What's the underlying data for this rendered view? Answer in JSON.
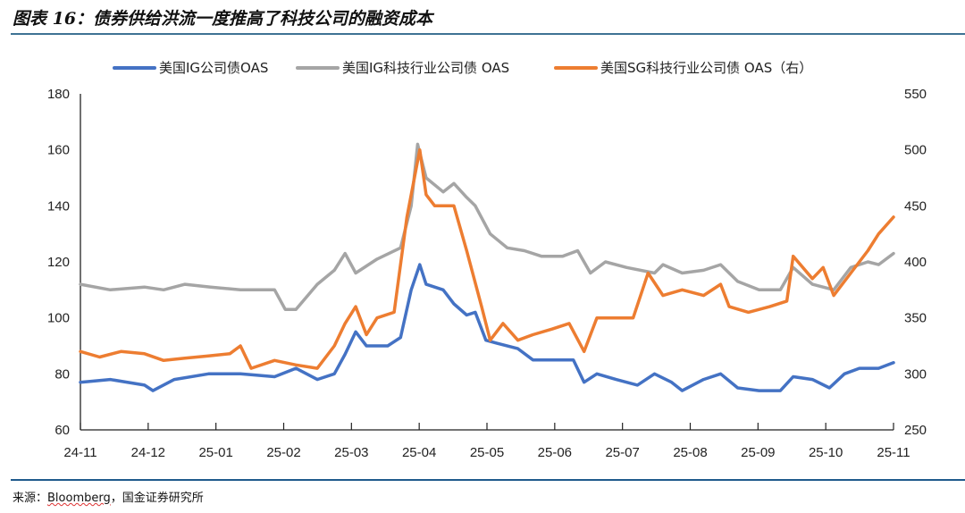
{
  "title": "图表 16：债券供给洪流一度推高了科技公司的融资成本",
  "source": {
    "prefix": "来源：",
    "name": "Bloomberg",
    "suffix": "，国金证券研究所"
  },
  "chart_data": {
    "type": "line",
    "title": "图表 16：债券供给洪流一度推高了科技公司的融资成本",
    "x_tick_labels": [
      "24-11",
      "24-12",
      "25-01",
      "25-02",
      "25-03",
      "25-04",
      "25-05",
      "25-06",
      "25-07",
      "25-08",
      "25-09",
      "25-10",
      "25-11"
    ],
    "xlim": [
      "2024-11-01",
      "2025-11-17"
    ],
    "y_left": {
      "lim": [
        60,
        180
      ],
      "ticks": [
        60,
        80,
        100,
        120,
        140,
        160,
        180
      ]
    },
    "y_right": {
      "lim": [
        250,
        550
      ],
      "ticks": [
        250,
        300,
        350,
        400,
        450,
        500,
        550
      ]
    },
    "grid": false,
    "legend_position": "top",
    "series": [
      {
        "name": "美国IG公司债OAS",
        "axis": "left",
        "color": "#4472c4",
        "points": [
          [
            "2024-11-01",
            77
          ],
          [
            "2024-11-15",
            78
          ],
          [
            "2024-12-01",
            76
          ],
          [
            "2024-12-05",
            74
          ],
          [
            "2024-12-15",
            78
          ],
          [
            "2024-12-31",
            80
          ],
          [
            "2025-01-15",
            80
          ],
          [
            "2025-01-31",
            79
          ],
          [
            "2025-02-10",
            82
          ],
          [
            "2025-02-20",
            78
          ],
          [
            "2025-02-28",
            80
          ],
          [
            "2025-03-05",
            87
          ],
          [
            "2025-03-10",
            95
          ],
          [
            "2025-03-15",
            90
          ],
          [
            "2025-03-25",
            90
          ],
          [
            "2025-03-31",
            93
          ],
          [
            "2025-04-05",
            110
          ],
          [
            "2025-04-09",
            119
          ],
          [
            "2025-04-12",
            112
          ],
          [
            "2025-04-20",
            110
          ],
          [
            "2025-04-25",
            105
          ],
          [
            "2025-05-01",
            101
          ],
          [
            "2025-05-05",
            102
          ],
          [
            "2025-05-10",
            92
          ],
          [
            "2025-05-15",
            91
          ],
          [
            "2025-05-25",
            89
          ],
          [
            "2025-06-01",
            85
          ],
          [
            "2025-06-10",
            85
          ],
          [
            "2025-06-20",
            85
          ],
          [
            "2025-06-25",
            77
          ],
          [
            "2025-07-01",
            80
          ],
          [
            "2025-07-10",
            78
          ],
          [
            "2025-07-20",
            76
          ],
          [
            "2025-07-28",
            80
          ],
          [
            "2025-08-05",
            77
          ],
          [
            "2025-08-10",
            74
          ],
          [
            "2025-08-20",
            78
          ],
          [
            "2025-08-28",
            80
          ],
          [
            "2025-09-05",
            75
          ],
          [
            "2025-09-15",
            74
          ],
          [
            "2025-09-25",
            74
          ],
          [
            "2025-10-01",
            79
          ],
          [
            "2025-10-10",
            78
          ],
          [
            "2025-10-18",
            75
          ],
          [
            "2025-10-25",
            80
          ],
          [
            "2025-11-01",
            82
          ],
          [
            "2025-11-10",
            82
          ],
          [
            "2025-11-17",
            84
          ]
        ]
      },
      {
        "name": "美国IG科技行业公司债 OAS",
        "axis": "left",
        "color": "#a5a5a5",
        "points": [
          [
            "2024-11-01",
            112
          ],
          [
            "2024-11-15",
            110
          ],
          [
            "2024-12-01",
            111
          ],
          [
            "2024-12-10",
            110
          ],
          [
            "2024-12-20",
            112
          ],
          [
            "2025-01-01",
            111
          ],
          [
            "2025-01-15",
            110
          ],
          [
            "2025-01-31",
            110
          ],
          [
            "2025-02-05",
            103
          ],
          [
            "2025-02-10",
            103
          ],
          [
            "2025-02-20",
            112
          ],
          [
            "2025-02-28",
            117
          ],
          [
            "2025-03-05",
            123
          ],
          [
            "2025-03-10",
            116
          ],
          [
            "2025-03-20",
            121
          ],
          [
            "2025-03-31",
            125
          ],
          [
            "2025-04-05",
            140
          ],
          [
            "2025-04-08",
            162
          ],
          [
            "2025-04-12",
            150
          ],
          [
            "2025-04-20",
            145
          ],
          [
            "2025-04-25",
            148
          ],
          [
            "2025-05-01",
            143
          ],
          [
            "2025-05-05",
            140
          ],
          [
            "2025-05-12",
            130
          ],
          [
            "2025-05-20",
            125
          ],
          [
            "2025-05-28",
            124
          ],
          [
            "2025-06-05",
            122
          ],
          [
            "2025-06-15",
            122
          ],
          [
            "2025-06-22",
            124
          ],
          [
            "2025-06-28",
            116
          ],
          [
            "2025-07-05",
            120
          ],
          [
            "2025-07-15",
            118
          ],
          [
            "2025-07-28",
            116
          ],
          [
            "2025-08-01",
            119
          ],
          [
            "2025-08-10",
            116
          ],
          [
            "2025-08-20",
            117
          ],
          [
            "2025-08-28",
            119
          ],
          [
            "2025-09-05",
            113
          ],
          [
            "2025-09-15",
            110
          ],
          [
            "2025-09-25",
            110
          ],
          [
            "2025-10-01",
            118
          ],
          [
            "2025-10-10",
            112
          ],
          [
            "2025-10-20",
            110
          ],
          [
            "2025-10-28",
            118
          ],
          [
            "2025-11-05",
            120
          ],
          [
            "2025-11-10",
            119
          ],
          [
            "2025-11-17",
            123
          ]
        ]
      },
      {
        "name": "美国SG科技行业公司债 OAS（右）",
        "axis": "right",
        "color": "#ed7d31",
        "points": [
          [
            "2024-11-01",
            320
          ],
          [
            "2024-11-10",
            315
          ],
          [
            "2024-11-20",
            320
          ],
          [
            "2024-12-01",
            318
          ],
          [
            "2024-12-10",
            312
          ],
          [
            "2024-12-20",
            314
          ],
          [
            "2024-12-31",
            316
          ],
          [
            "2025-01-10",
            318
          ],
          [
            "2025-01-15",
            325
          ],
          [
            "2025-01-20",
            305
          ],
          [
            "2025-01-31",
            312
          ],
          [
            "2025-02-10",
            308
          ],
          [
            "2025-02-20",
            305
          ],
          [
            "2025-02-28",
            325
          ],
          [
            "2025-03-05",
            345
          ],
          [
            "2025-03-10",
            360
          ],
          [
            "2025-03-15",
            335
          ],
          [
            "2025-03-20",
            350
          ],
          [
            "2025-03-28",
            355
          ],
          [
            "2025-04-03",
            440
          ],
          [
            "2025-04-07",
            480
          ],
          [
            "2025-04-09",
            500
          ],
          [
            "2025-04-12",
            460
          ],
          [
            "2025-04-16",
            450
          ],
          [
            "2025-04-25",
            450
          ],
          [
            "2025-05-01",
            410
          ],
          [
            "2025-05-08",
            360
          ],
          [
            "2025-05-12",
            330
          ],
          [
            "2025-05-18",
            345
          ],
          [
            "2025-05-25",
            330
          ],
          [
            "2025-06-01",
            335
          ],
          [
            "2025-06-10",
            340
          ],
          [
            "2025-06-18",
            345
          ],
          [
            "2025-06-25",
            320
          ],
          [
            "2025-07-01",
            350
          ],
          [
            "2025-07-10",
            350
          ],
          [
            "2025-07-18",
            350
          ],
          [
            "2025-07-25",
            390
          ],
          [
            "2025-08-01",
            370
          ],
          [
            "2025-08-10",
            375
          ],
          [
            "2025-08-20",
            370
          ],
          [
            "2025-08-28",
            380
          ],
          [
            "2025-09-01",
            360
          ],
          [
            "2025-09-10",
            355
          ],
          [
            "2025-09-20",
            360
          ],
          [
            "2025-09-28",
            365
          ],
          [
            "2025-10-01",
            405
          ],
          [
            "2025-10-10",
            385
          ],
          [
            "2025-10-15",
            395
          ],
          [
            "2025-10-20",
            370
          ],
          [
            "2025-10-28",
            390
          ],
          [
            "2025-11-05",
            410
          ],
          [
            "2025-11-10",
            425
          ],
          [
            "2025-11-17",
            440
          ]
        ]
      }
    ]
  }
}
